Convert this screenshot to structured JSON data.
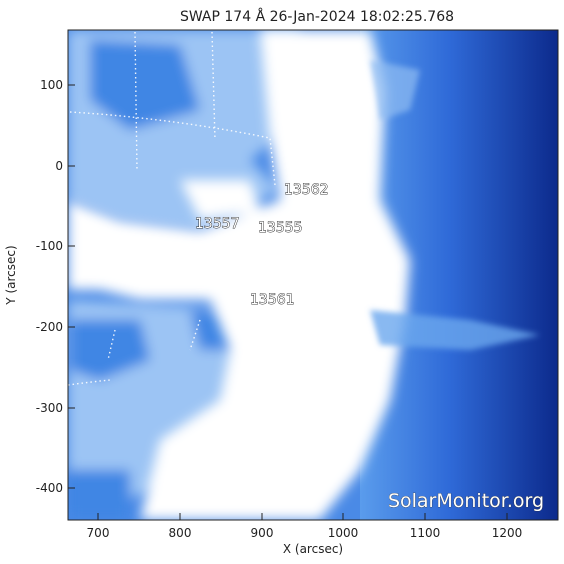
{
  "title": "SWAP 174 Å 26-Jan-2024 18:02:25.768",
  "xlabel": "X (arcsec)",
  "ylabel": "Y (arcsec)",
  "x_ticks": [
    "700",
    "800",
    "900",
    "1000",
    "1100",
    "1200"
  ],
  "y_ticks": [
    "100",
    "0",
    "-100",
    "-200",
    "-300",
    "-400"
  ],
  "regions": [
    "13562",
    "13557",
    "13555",
    "13561"
  ],
  "watermark": "SolarMonitor.org",
  "colors": {
    "deep_blue": "#1030a0",
    "mid_blue": "#3a78e0",
    "light_blue": "#9cc4f4",
    "saturated": "#ffffff"
  }
}
